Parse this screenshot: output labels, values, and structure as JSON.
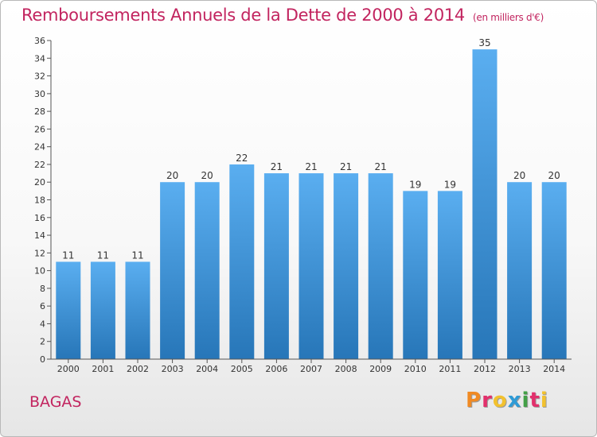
{
  "header": {
    "title": "Remboursements Annuels de la Dette de 2000 à 2014",
    "unit": "(en milliers d'€)"
  },
  "footer": {
    "commune": "BAGAS",
    "logo_text": "Proxiti",
    "logo_colors": [
      "#f08a24",
      "#e2306c",
      "#f2c12e",
      "#2f9bd6",
      "#43a047",
      "#e2306c",
      "#f2c12e"
    ]
  },
  "colors": {
    "bar_top": "#5aaef0",
    "bar_bottom": "#2776b8",
    "text": "#333333",
    "accent": "#c2245f"
  },
  "chart_data": {
    "type": "bar",
    "categories": [
      "2000",
      "2001",
      "2002",
      "2003",
      "2004",
      "2005",
      "2006",
      "2007",
      "2008",
      "2009",
      "2010",
      "2011",
      "2012",
      "2013",
      "2014"
    ],
    "values": [
      11,
      11,
      11,
      20,
      20,
      22,
      21,
      21,
      21,
      21,
      19,
      19,
      35,
      20,
      20
    ],
    "title": "Remboursements Annuels de la Dette de 2000 à 2014",
    "xlabel": "",
    "ylabel": "",
    "ylim": [
      0,
      36
    ],
    "yticks": [
      0,
      2,
      4,
      6,
      8,
      10,
      12,
      14,
      16,
      18,
      20,
      22,
      24,
      26,
      28,
      30,
      32,
      34,
      36
    ],
    "grid": false,
    "data_labels": true
  }
}
